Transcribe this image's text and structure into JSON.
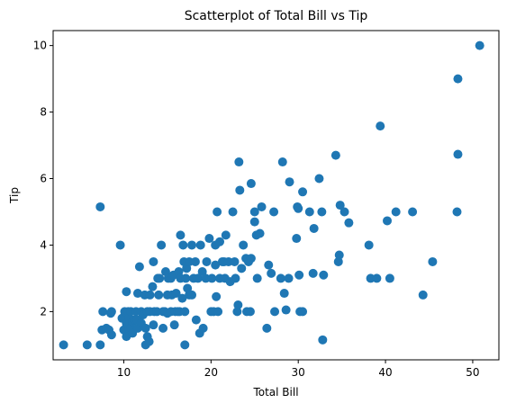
{
  "chart_data": {
    "type": "scatter",
    "title": "Scatterplot of Total Bill vs Tip",
    "xlabel": "Total Bill",
    "ylabel": "Tip",
    "xlim": [
      1.9,
      53.0
    ],
    "ylim": [
      0.55,
      10.45
    ],
    "xticks": [
      10,
      20,
      30,
      40,
      50
    ],
    "yticks": [
      2,
      4,
      6,
      8,
      10
    ],
    "grid": false,
    "marker_color": "#1f77b4",
    "series": [
      {
        "points": [
          [
            3.1,
            1.0
          ],
          [
            5.8,
            1.0
          ],
          [
            7.3,
            1.0
          ],
          [
            7.3,
            5.15
          ],
          [
            7.5,
            1.45
          ],
          [
            7.6,
            2.0
          ],
          [
            8.0,
            1.5
          ],
          [
            8.3,
            1.45
          ],
          [
            8.5,
            1.95
          ],
          [
            8.6,
            2.0
          ],
          [
            8.6,
            1.3
          ],
          [
            9.6,
            4.0
          ],
          [
            9.8,
            1.8
          ],
          [
            10.0,
            1.45
          ],
          [
            10.1,
            2.0
          ],
          [
            10.3,
            1.65
          ],
          [
            10.3,
            1.25
          ],
          [
            10.3,
            2.6
          ],
          [
            10.5,
            2.0
          ],
          [
            10.6,
            1.5
          ],
          [
            10.6,
            1.8
          ],
          [
            10.8,
            1.5
          ],
          [
            10.8,
            2.0
          ],
          [
            11.0,
            1.35
          ],
          [
            11.0,
            1.7
          ],
          [
            11.2,
            1.75
          ],
          [
            11.4,
            2.0
          ],
          [
            11.5,
            1.75
          ],
          [
            11.6,
            1.5
          ],
          [
            11.6,
            2.55
          ],
          [
            11.8,
            3.35
          ],
          [
            12.0,
            1.65
          ],
          [
            12.0,
            2.0
          ],
          [
            12.2,
            1.9
          ],
          [
            12.4,
            2.5
          ],
          [
            12.5,
            1.5
          ],
          [
            12.5,
            1.0
          ],
          [
            12.7,
            1.25
          ],
          [
            12.7,
            2.0
          ],
          [
            12.9,
            1.1
          ],
          [
            13.0,
            2.0
          ],
          [
            13.0,
            2.5
          ],
          [
            13.3,
            2.75
          ],
          [
            13.4,
            1.6
          ],
          [
            13.4,
            3.5
          ],
          [
            13.5,
            2.0
          ],
          [
            13.8,
            2.0
          ],
          [
            13.9,
            3.0
          ],
          [
            14.0,
            2.5
          ],
          [
            14.1,
            3.0
          ],
          [
            14.3,
            4.0
          ],
          [
            14.5,
            2.0
          ],
          [
            14.5,
            1.5
          ],
          [
            14.7,
            2.0
          ],
          [
            14.8,
            3.2
          ],
          [
            15.0,
            2.5
          ],
          [
            15.0,
            1.95
          ],
          [
            15.1,
            3.0
          ],
          [
            15.4,
            2.0
          ],
          [
            15.4,
            3.0
          ],
          [
            15.5,
            2.5
          ],
          [
            15.7,
            3.1
          ],
          [
            15.8,
            1.6
          ],
          [
            15.9,
            2.0
          ],
          [
            16.0,
            2.55
          ],
          [
            16.2,
            2.0
          ],
          [
            16.3,
            3.2
          ],
          [
            16.4,
            2.0
          ],
          [
            16.5,
            4.3
          ],
          [
            16.5,
            3.0
          ],
          [
            16.7,
            2.4
          ],
          [
            16.8,
            4.0
          ],
          [
            16.9,
            3.5
          ],
          [
            17.0,
            2.0
          ],
          [
            17.0,
            1.0
          ],
          [
            17.1,
            3.0
          ],
          [
            17.2,
            3.3
          ],
          [
            17.3,
            2.7
          ],
          [
            17.5,
            3.5
          ],
          [
            17.5,
            2.5
          ],
          [
            17.8,
            2.5
          ],
          [
            17.8,
            4.0
          ],
          [
            18.0,
            3.0
          ],
          [
            18.2,
            3.5
          ],
          [
            18.3,
            1.75
          ],
          [
            18.5,
            3.0
          ],
          [
            18.7,
            1.35
          ],
          [
            18.8,
            4.0
          ],
          [
            19.0,
            3.2
          ],
          [
            19.1,
            1.5
          ],
          [
            19.4,
            3.0
          ],
          [
            19.5,
            3.5
          ],
          [
            19.8,
            4.2
          ],
          [
            20.0,
            2.0
          ],
          [
            20.1,
            3.0
          ],
          [
            20.3,
            2.0
          ],
          [
            20.5,
            3.4
          ],
          [
            20.5,
            4.0
          ],
          [
            20.6,
            2.45
          ],
          [
            20.7,
            5.0
          ],
          [
            20.8,
            2.0
          ],
          [
            21.0,
            3.0
          ],
          [
            21.0,
            4.1
          ],
          [
            21.3,
            3.5
          ],
          [
            21.5,
            3.5
          ],
          [
            21.6,
            3.0
          ],
          [
            21.7,
            4.3
          ],
          [
            22.0,
            3.5
          ],
          [
            22.2,
            2.9
          ],
          [
            22.5,
            5.0
          ],
          [
            22.7,
            3.5
          ],
          [
            22.8,
            3.0
          ],
          [
            23.0,
            2.0
          ],
          [
            23.1,
            2.2
          ],
          [
            23.2,
            6.5
          ],
          [
            23.3,
            5.65
          ],
          [
            23.5,
            3.3
          ],
          [
            23.7,
            4.0
          ],
          [
            24.0,
            3.6
          ],
          [
            24.1,
            2.0
          ],
          [
            24.3,
            3.5
          ],
          [
            24.5,
            2.0
          ],
          [
            24.6,
            5.85
          ],
          [
            24.6,
            3.6
          ],
          [
            25.0,
            4.7
          ],
          [
            25.0,
            5.0
          ],
          [
            25.2,
            4.3
          ],
          [
            25.3,
            3.0
          ],
          [
            25.6,
            4.35
          ],
          [
            25.8,
            5.15
          ],
          [
            26.4,
            1.5
          ],
          [
            26.6,
            3.4
          ],
          [
            26.9,
            3.15
          ],
          [
            27.2,
            5.0
          ],
          [
            27.3,
            2.0
          ],
          [
            28.0,
            3.0
          ],
          [
            28.2,
            6.5
          ],
          [
            28.4,
            2.55
          ],
          [
            28.6,
            2.05
          ],
          [
            28.9,
            3.0
          ],
          [
            29.0,
            5.9
          ],
          [
            29.8,
            4.2
          ],
          [
            29.9,
            5.15
          ],
          [
            30.0,
            5.1
          ],
          [
            30.1,
            3.1
          ],
          [
            30.2,
            2.0
          ],
          [
            30.5,
            2.0
          ],
          [
            30.5,
            5.6
          ],
          [
            31.3,
            5.0
          ],
          [
            31.7,
            3.15
          ],
          [
            31.8,
            4.5
          ],
          [
            32.4,
            6.0
          ],
          [
            32.7,
            5.0
          ],
          [
            32.8,
            1.15
          ],
          [
            32.9,
            3.1
          ],
          [
            34.3,
            6.7
          ],
          [
            34.6,
            3.5
          ],
          [
            34.7,
            3.7
          ],
          [
            34.8,
            5.2
          ],
          [
            35.3,
            5.0
          ],
          [
            35.8,
            4.67
          ],
          [
            38.1,
            4.0
          ],
          [
            38.3,
            3.0
          ],
          [
            39.0,
            3.0
          ],
          [
            39.4,
            7.58
          ],
          [
            40.2,
            4.73
          ],
          [
            40.5,
            3.0
          ],
          [
            41.2,
            5.0
          ],
          [
            43.1,
            5.0
          ],
          [
            44.3,
            2.5
          ],
          [
            45.4,
            3.5
          ],
          [
            48.2,
            5.0
          ],
          [
            48.3,
            6.73
          ],
          [
            48.3,
            9.0
          ],
          [
            50.8,
            10.0
          ]
        ]
      }
    ]
  }
}
